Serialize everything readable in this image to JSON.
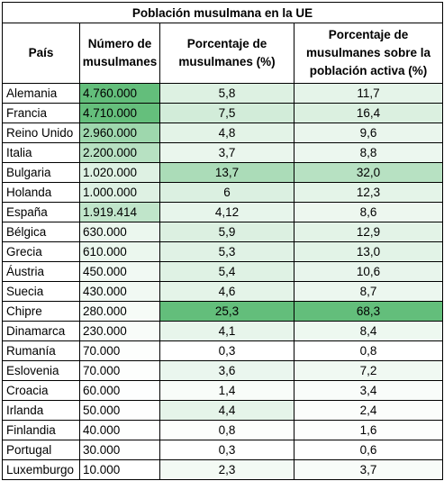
{
  "table": {
    "title": "Población musulmana en la UE",
    "headers": [
      "País",
      "Número de musulmanes",
      "Porcentaje de musulmanes (%)",
      "Porcentaje de musulmanes sobre la población activa (%)"
    ],
    "rows": [
      {
        "country": "Alemania",
        "muslims": "4.760.000",
        "pct": "5,8",
        "pct_active": "11,7",
        "muslims_value": 4760000,
        "pct_value": 5.8,
        "pct_active_value": 11.7
      },
      {
        "country": "Francia",
        "muslims": "4.710.000",
        "pct": "7,5",
        "pct_active": "16,4",
        "muslims_value": 4710000,
        "pct_value": 7.5,
        "pct_active_value": 16.4
      },
      {
        "country": "Reino Unido",
        "muslims": "2.960.000",
        "pct": "4,8",
        "pct_active": "9,6",
        "muslims_value": 2960000,
        "pct_value": 4.8,
        "pct_active_value": 9.6
      },
      {
        "country": "Italia",
        "muslims": "2.200.000",
        "pct": "3,7",
        "pct_active": "8,8",
        "muslims_value": 2200000,
        "pct_value": 3.7,
        "pct_active_value": 8.8
      },
      {
        "country": "Bulgaria",
        "muslims": "1.020.000",
        "pct": "13,7",
        "pct_active": "32,0",
        "muslims_value": 1020000,
        "pct_value": 13.7,
        "pct_active_value": 32.0
      },
      {
        "country": "Holanda",
        "muslims": "1.000.000",
        "pct": "6",
        "pct_active": "12,3",
        "muslims_value": 1000000,
        "pct_value": 6,
        "pct_active_value": 12.3
      },
      {
        "country": "España",
        "muslims": "1.919.414",
        "pct": "4,12",
        "pct_active": "8,6",
        "muslims_value": 1919414,
        "pct_value": 4.12,
        "pct_active_value": 8.6
      },
      {
        "country": "Bélgica",
        "muslims": "630.000",
        "pct": "5,9",
        "pct_active": "12,9",
        "muslims_value": 630000,
        "pct_value": 5.9,
        "pct_active_value": 12.9
      },
      {
        "country": "Grecia",
        "muslims": "610.000",
        "pct": "5,3",
        "pct_active": "13,0",
        "muslims_value": 610000,
        "pct_value": 5.3,
        "pct_active_value": 13.0
      },
      {
        "country": "Áustria",
        "muslims": "450.000",
        "pct": "5,4",
        "pct_active": "10,6",
        "muslims_value": 450000,
        "pct_value": 5.4,
        "pct_active_value": 10.6
      },
      {
        "country": "Suecia",
        "muslims": "430.000",
        "pct": "4,6",
        "pct_active": "8,7",
        "muslims_value": 430000,
        "pct_value": 4.6,
        "pct_active_value": 8.7
      },
      {
        "country": "Chipre",
        "muslims": "280.000",
        "pct": "25,3",
        "pct_active": "68,3",
        "muslims_value": 280000,
        "pct_value": 25.3,
        "pct_active_value": 68.3
      },
      {
        "country": "Dinamarca",
        "muslims": "230.000",
        "pct": "4,1",
        "pct_active": "8,4",
        "muslims_value": 230000,
        "pct_value": 4.1,
        "pct_active_value": 8.4
      },
      {
        "country": "Rumanía",
        "muslims": "70.000",
        "pct": "0,3",
        "pct_active": "0,8",
        "muslims_value": 70000,
        "pct_value": 0.3,
        "pct_active_value": 0.8
      },
      {
        "country": "Eslovenia",
        "muslims": "70.000",
        "pct": "3,6",
        "pct_active": "7,2",
        "muslims_value": 70000,
        "pct_value": 3.6,
        "pct_active_value": 7.2
      },
      {
        "country": "Croacia",
        "muslims": "60.000",
        "pct": "1,4",
        "pct_active": "3,4",
        "muslims_value": 60000,
        "pct_value": 1.4,
        "pct_active_value": 3.4
      },
      {
        "country": "Irlanda",
        "muslims": "50.000",
        "pct": "4,4",
        "pct_active": "2,4",
        "muslims_value": 50000,
        "pct_value": 4.4,
        "pct_active_value": 2.4
      },
      {
        "country": "Finlandia",
        "muslims": "40.000",
        "pct": "0,8",
        "pct_active": "1,6",
        "muslims_value": 40000,
        "pct_value": 0.8,
        "pct_active_value": 1.6
      },
      {
        "country": "Portugal",
        "muslims": "30.000",
        "pct": "0,3",
        "pct_active": "0,6",
        "muslims_value": 30000,
        "pct_value": 0.3,
        "pct_active_value": 0.6
      },
      {
        "country": "Luxemburgo",
        "muslims": "10.000",
        "pct": "2,3",
        "pct_active": "3,7",
        "muslims_value": 10000,
        "pct_value": 2.3,
        "pct_active_value": 3.7
      }
    ]
  },
  "colors": {
    "scale_low": "#ffffff",
    "scale_high": "#63be7b",
    "grid": "#000000"
  }
}
